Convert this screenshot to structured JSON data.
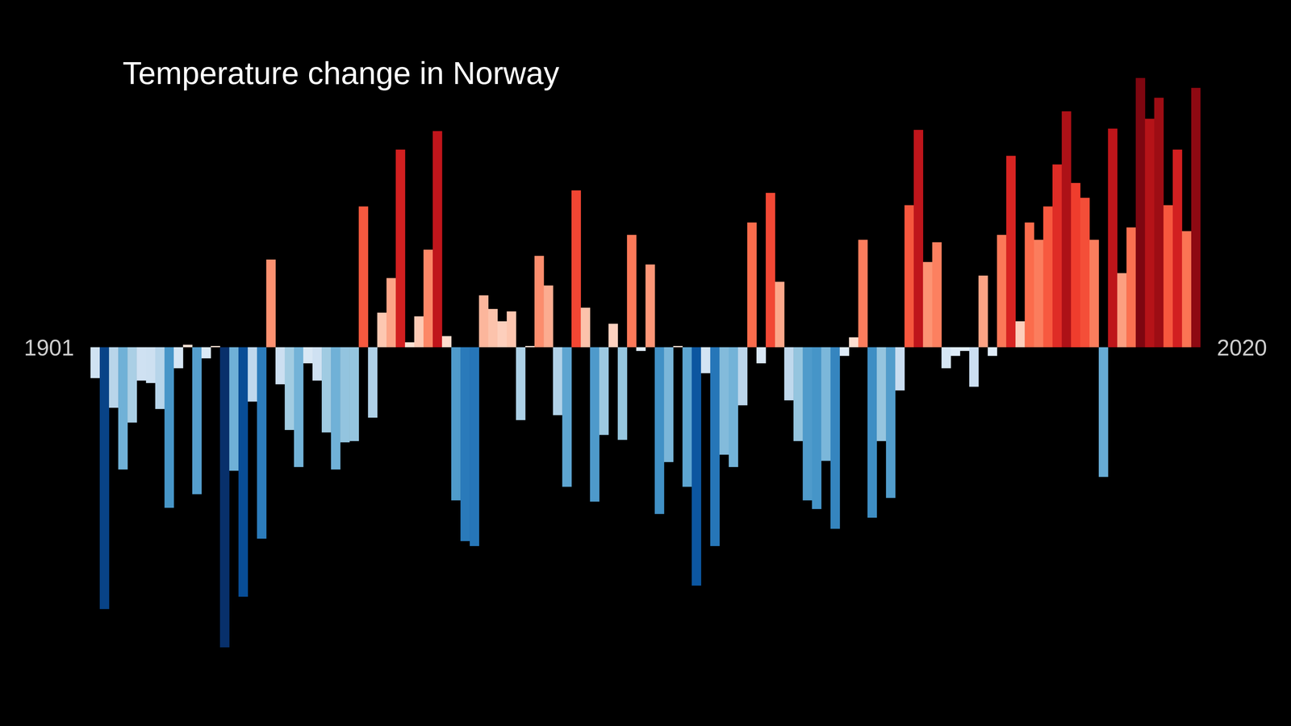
{
  "chart_data": {
    "type": "bar",
    "title": "Temperature change in Norway",
    "categories": [
      "1901",
      null,
      null,
      null,
      null,
      null,
      null,
      null,
      null,
      null,
      null,
      null,
      null,
      null,
      null,
      null,
      null,
      null,
      null,
      null,
      null,
      null,
      null,
      null,
      null,
      null,
      null,
      null,
      null,
      null,
      null,
      null,
      null,
      null,
      null,
      null,
      null,
      null,
      null,
      null,
      null,
      null,
      null,
      null,
      null,
      null,
      null,
      null,
      null,
      null,
      null,
      null,
      null,
      null,
      null,
      null,
      null,
      null,
      null,
      null,
      null,
      null,
      null,
      null,
      null,
      null,
      null,
      null,
      null,
      null,
      null,
      null,
      null,
      null,
      null,
      null,
      null,
      null,
      null,
      null,
      null,
      null,
      null,
      null,
      null,
      null,
      null,
      null,
      null,
      null,
      null,
      null,
      null,
      null,
      null,
      null,
      null,
      null,
      null,
      null,
      null,
      null,
      null,
      null,
      null,
      null,
      null,
      null,
      null,
      null,
      null,
      null,
      null,
      null,
      null,
      null,
      null,
      null,
      null,
      "2020"
    ],
    "values": [
      -0.25,
      -2.12,
      -0.49,
      -0.99,
      -0.61,
      -0.27,
      -0.29,
      -0.5,
      -1.3,
      -0.17,
      0.02,
      -1.19,
      -0.09,
      0.01,
      -2.43,
      -1.0,
      -2.02,
      -0.44,
      -1.55,
      0.71,
      -0.3,
      -0.67,
      -0.97,
      -0.13,
      -0.27,
      -0.69,
      -0.99,
      -0.77,
      -0.76,
      1.14,
      -0.57,
      0.28,
      0.56,
      1.6,
      0.04,
      0.25,
      0.79,
      1.75,
      0.09,
      -1.24,
      -1.57,
      -1.61,
      0.42,
      0.31,
      0.21,
      0.29,
      -0.59,
      0.01,
      0.74,
      0.5,
      -0.55,
      -1.13,
      1.27,
      0.32,
      -1.25,
      -0.71,
      0.19,
      -0.75,
      0.91,
      -0.03,
      0.67,
      -1.35,
      -0.93,
      0.01,
      -1.13,
      -1.93,
      -0.21,
      -1.61,
      -0.87,
      -0.97,
      -0.47,
      1.01,
      -0.13,
      1.25,
      0.53,
      -0.43,
      -0.76,
      -1.24,
      -1.31,
      -0.92,
      -1.47,
      -0.07,
      0.08,
      0.87,
      -1.38,
      -0.76,
      -1.22,
      -0.35,
      1.15,
      1.76,
      0.69,
      0.85,
      -0.17,
      -0.07,
      -0.03,
      -0.32,
      0.58,
      -0.07,
      0.91,
      1.55,
      0.21,
      1.01,
      0.87,
      1.14,
      1.48,
      1.91,
      1.33,
      1.21,
      0.87,
      -1.05,
      1.77,
      0.6,
      0.97,
      2.18,
      1.85,
      2.02,
      1.15,
      1.6,
      0.94,
      2.1
    ],
    "ylim": [
      -2.5,
      2.3
    ],
    "tick_labels": "x",
    "grid": false
  }
}
